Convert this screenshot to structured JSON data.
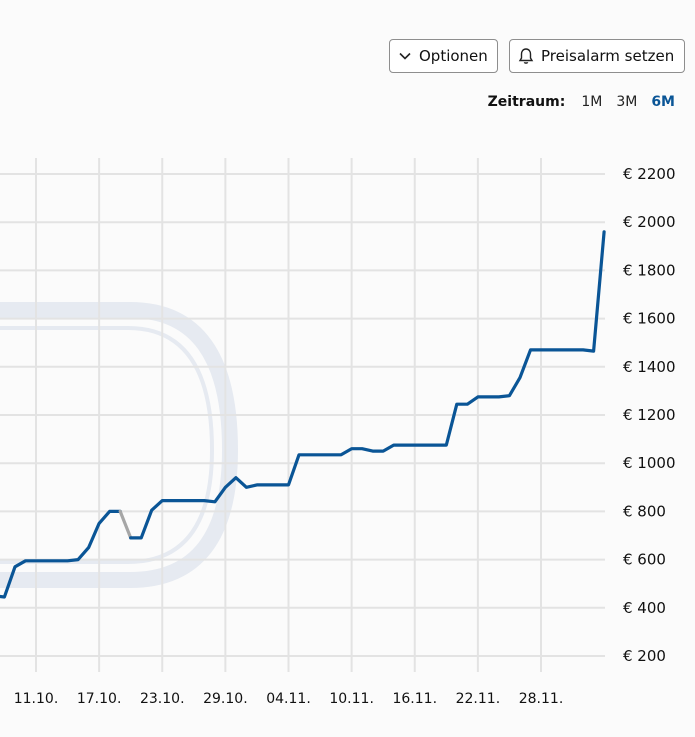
{
  "toolbar": {
    "options_label": "Optionen",
    "alarm_label": "Preisalarm setzen"
  },
  "range": {
    "label": "Zeitraum:",
    "options": [
      "1M",
      "3M",
      "6M"
    ],
    "active": "6M"
  },
  "colors": {
    "line": "#0a5596",
    "line_missing": "#a6a6a6",
    "grid": "#e3e3e3",
    "active_range": "#0a5596",
    "watermark": "#e4e9f0"
  },
  "chart_data": {
    "type": "line",
    "title": "",
    "xlabel": "",
    "ylabel": "",
    "ylim": [
      100,
      2300
    ],
    "y_ticks": [
      200,
      400,
      600,
      800,
      1000,
      1200,
      1400,
      1600,
      1800,
      2000,
      2200
    ],
    "y_tick_labels": [
      "€ 200",
      "€ 400",
      "€ 600",
      "€ 800",
      "€ 1000",
      "€ 1200",
      "€ 1400",
      "€ 1600",
      "€ 1800",
      "€ 2000",
      "€ 2200"
    ],
    "x_ticks": [
      "11.10.",
      "17.10.",
      "23.10.",
      "29.10.",
      "04.11.",
      "10.11.",
      "16.11.",
      "22.11.",
      "28.11."
    ],
    "grid": true,
    "series": [
      {
        "points": [
          [
            "07.10.",
            450
          ],
          [
            "08.10.",
            445
          ],
          [
            "09.10.",
            570
          ],
          [
            "10.10.",
            595
          ],
          [
            "11.10.",
            595
          ],
          [
            "12.10.",
            595
          ],
          [
            "13.10.",
            595
          ],
          [
            "14.10.",
            595
          ],
          [
            "15.10.",
            600
          ],
          [
            "16.10.",
            650
          ],
          [
            "17.10.",
            750
          ],
          [
            "18.10.",
            800
          ],
          [
            "19.10.",
            800
          ]
        ]
      },
      {
        "missing": true,
        "points": [
          [
            "19.10.",
            800
          ],
          [
            "20.10.",
            690
          ]
        ]
      },
      {
        "points": [
          [
            "20.10.",
            690
          ],
          [
            "21.10.",
            690
          ],
          [
            "22.10.",
            805
          ],
          [
            "23.10.",
            845
          ],
          [
            "24.10.",
            845
          ],
          [
            "25.10.",
            845
          ],
          [
            "26.10.",
            845
          ],
          [
            "27.10.",
            845
          ],
          [
            "28.10.",
            840
          ],
          [
            "29.10.",
            900
          ],
          [
            "30.10.",
            940
          ],
          [
            "31.10.",
            900
          ],
          [
            "01.11.",
            910
          ],
          [
            "02.11.",
            910
          ],
          [
            "03.11.",
            910
          ],
          [
            "04.11.",
            910
          ],
          [
            "05.11.",
            1035
          ],
          [
            "06.11.",
            1035
          ],
          [
            "07.11.",
            1035
          ],
          [
            "08.11.",
            1035
          ],
          [
            "09.11.",
            1035
          ],
          [
            "10.11.",
            1060
          ],
          [
            "11.11.",
            1060
          ],
          [
            "12.11.",
            1050
          ],
          [
            "13.11.",
            1050
          ],
          [
            "14.11.",
            1075
          ],
          [
            "15.11.",
            1075
          ],
          [
            "16.11.",
            1075
          ],
          [
            "17.11.",
            1075
          ],
          [
            "18.11.",
            1075
          ],
          [
            "19.11.",
            1075
          ],
          [
            "20.11.",
            1245
          ],
          [
            "21.11.",
            1245
          ],
          [
            "22.11.",
            1275
          ],
          [
            "23.11.",
            1275
          ],
          [
            "24.11.",
            1275
          ],
          [
            "25.11.",
            1280
          ],
          [
            "26.11.",
            1355
          ],
          [
            "27.11.",
            1470
          ],
          [
            "28.11.",
            1470
          ],
          [
            "29.11.",
            1470
          ],
          [
            "30.11.",
            1470
          ],
          [
            "01.12.",
            1470
          ],
          [
            "02.12.",
            1470
          ],
          [
            "03.12.",
            1465
          ],
          [
            "04.12.",
            1960
          ]
        ]
      }
    ]
  }
}
